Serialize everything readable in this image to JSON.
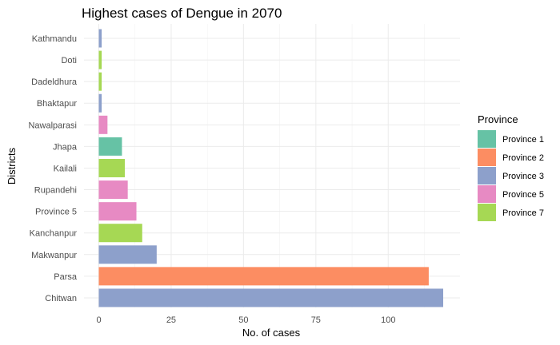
{
  "chart_data": {
    "type": "bar",
    "orientation": "horizontal",
    "title": "Highest cases of Dengue in 2070",
    "xlabel": "No. of cases",
    "ylabel": "Districts",
    "xlim": [
      0,
      120
    ],
    "x_ticks": [
      0,
      25,
      50,
      75,
      100
    ],
    "grid": true,
    "legend_position": "right",
    "legend_title": "Province",
    "legend": [
      {
        "name": "Province 1",
        "color": "#66c2a5"
      },
      {
        "name": "Province 2",
        "color": "#fc8d62"
      },
      {
        "name": "Province 3",
        "color": "#8da0cb"
      },
      {
        "name": "Province 5",
        "color": "#e78ac3"
      },
      {
        "name": "Province 7",
        "color": "#a6d854"
      }
    ],
    "bars": [
      {
        "category": "Kathmandu",
        "value": 1,
        "province": "Province 3"
      },
      {
        "category": "Doti",
        "value": 1,
        "province": "Province 7"
      },
      {
        "category": "Dadeldhura",
        "value": 1,
        "province": "Province 7"
      },
      {
        "category": "Bhaktapur",
        "value": 1,
        "province": "Province 3"
      },
      {
        "category": "Nawalparasi",
        "value": 3,
        "province": "Province 5"
      },
      {
        "category": "Jhapa",
        "value": 8,
        "province": "Province 1"
      },
      {
        "category": "Kailali",
        "value": 9,
        "province": "Province 7"
      },
      {
        "category": "Rupandehi",
        "value": 10,
        "province": "Province 5"
      },
      {
        "category": "Province 5",
        "value": 13,
        "province": "Province 5"
      },
      {
        "category": "Kanchanpur",
        "value": 15,
        "province": "Province 7"
      },
      {
        "category": "Makwanpur",
        "value": 20,
        "province": "Province 3"
      },
      {
        "category": "Parsa",
        "value": 114,
        "province": "Province 2"
      },
      {
        "category": "Chitwan",
        "value": 119,
        "province": "Province 3"
      }
    ]
  }
}
